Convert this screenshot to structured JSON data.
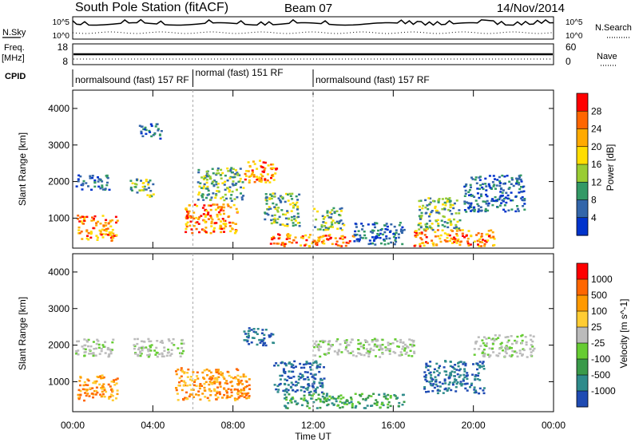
{
  "header": {
    "station": "South Pole Station (fitACF)",
    "beam": "Beam 07",
    "date": "14/Nov/2014"
  },
  "strips": {
    "nsky_label": "N.Sky",
    "nsky_ticks": [
      "10^5",
      "10^0"
    ],
    "nsearch_label": "N.Search",
    "nsearch_ticks": [
      "10^5",
      "10^0"
    ],
    "freq_label": "Freq.",
    "freq_unit": "[MHz]",
    "freq_ticks": [
      "18",
      "8"
    ],
    "nave_label": "Nave",
    "nave_ticks": [
      "60",
      "0"
    ],
    "cpid_label": "CPID"
  },
  "cpid_segments": [
    {
      "label": "normalsound (fast) 157 RF",
      "start_hour": 0
    },
    {
      "label": "normal (fast) 151 RF",
      "start_hour": 6
    },
    {
      "label": "normalsound (fast) 157 RF",
      "start_hour": 12
    }
  ],
  "power_panel": {
    "ylabel": "Slant Range [km]",
    "colorbar_label": "Power [dB]",
    "colorbar_ticks": [
      "28",
      "24",
      "20",
      "16",
      "12",
      "8",
      "4"
    ],
    "colors": [
      "#ff0000",
      "#ff6600",
      "#ffaa00",
      "#ffdd00",
      "#99cc33",
      "#339966",
      "#3366aa",
      "#0033cc"
    ]
  },
  "velocity_panel": {
    "ylabel": "Slant Range [km]",
    "colorbar_label": "Velocity [m s^-1]",
    "colorbar_ticks": [
      "1000",
      "500",
      "100",
      "25",
      "-25",
      "-100",
      "-500",
      "-1000"
    ],
    "colors": [
      "#1f4bb3",
      "#2e8b8b",
      "#3a9a4a",
      "#66cc33",
      "#bbbbbb",
      "#ffcc33",
      "#ff9900",
      "#ff6600",
      "#ff0000"
    ]
  },
  "xaxis": {
    "label": "Time UT",
    "ticks": [
      "00:00",
      "04:00",
      "08:00",
      "12:00",
      "16:00",
      "20:00",
      "00:00"
    ]
  },
  "chart_data": {
    "type": "heatmap",
    "title": "South Pole Station (fitACF)",
    "x_range_hours": [
      0,
      24
    ],
    "y_range_km": [
      180,
      4500
    ],
    "yticks": [
      1000,
      2000,
      3000,
      4000
    ],
    "panels": [
      {
        "name": "Power",
        "unit": "dB",
        "scale": [
          0,
          30
        ],
        "blobs": [
          {
            "t0": 0.1,
            "t1": 1.8,
            "r0": 1800,
            "r1": 2200,
            "level": "low"
          },
          {
            "t0": 0.2,
            "t1": 2.2,
            "r0": 400,
            "r1": 1100,
            "level": "high"
          },
          {
            "t0": 2.8,
            "t1": 4.0,
            "r0": 1600,
            "r1": 2100,
            "level": "mid"
          },
          {
            "t0": 3.3,
            "t1": 4.4,
            "r0": 3200,
            "r1": 3600,
            "level": "low"
          },
          {
            "t0": 5.5,
            "t1": 8.2,
            "r0": 600,
            "r1": 1400,
            "level": "high"
          },
          {
            "t0": 6.2,
            "t1": 8.5,
            "r0": 1500,
            "r1": 2400,
            "level": "mid"
          },
          {
            "t0": 8.5,
            "t1": 10.2,
            "r0": 2000,
            "r1": 2600,
            "level": "high"
          },
          {
            "t0": 9.5,
            "t1": 11.3,
            "r0": 800,
            "r1": 1700,
            "level": "mid"
          },
          {
            "t0": 9.8,
            "t1": 14.0,
            "r0": 250,
            "r1": 600,
            "level": "high"
          },
          {
            "t0": 12.0,
            "t1": 13.5,
            "r0": 700,
            "r1": 1300,
            "level": "mid"
          },
          {
            "t0": 14.0,
            "t1": 16.5,
            "r0": 300,
            "r1": 900,
            "level": "low"
          },
          {
            "t0": 17.2,
            "t1": 19.3,
            "r0": 700,
            "r1": 1600,
            "level": "mid"
          },
          {
            "t0": 17.0,
            "t1": 21.0,
            "r0": 250,
            "r1": 700,
            "level": "high"
          },
          {
            "t0": 19.5,
            "t1": 22.5,
            "r0": 1200,
            "r1": 2200,
            "level": "low"
          }
        ]
      },
      {
        "name": "Velocity",
        "unit": "m s^-1",
        "scale": [
          -1000,
          1000
        ],
        "blobs": [
          {
            "t0": 0.1,
            "t1": 2.0,
            "r0": 1700,
            "r1": 2200,
            "level": "grey"
          },
          {
            "t0": 0.2,
            "t1": 2.2,
            "r0": 500,
            "r1": 1200,
            "level": "orange"
          },
          {
            "t0": 3.0,
            "t1": 5.5,
            "r0": 1700,
            "r1": 2200,
            "level": "grey"
          },
          {
            "t0": 5.0,
            "t1": 8.8,
            "r0": 500,
            "r1": 1400,
            "level": "orange"
          },
          {
            "t0": 8.5,
            "t1": 10.0,
            "r0": 2000,
            "r1": 2500,
            "level": "blue"
          },
          {
            "t0": 10.0,
            "t1": 12.5,
            "r0": 700,
            "r1": 1600,
            "level": "blue"
          },
          {
            "t0": 10.5,
            "t1": 16.5,
            "r0": 300,
            "r1": 700,
            "level": "green"
          },
          {
            "t0": 12.0,
            "t1": 17.0,
            "r0": 1700,
            "r1": 2200,
            "level": "grey"
          },
          {
            "t0": 17.5,
            "t1": 20.5,
            "r0": 700,
            "r1": 1600,
            "level": "blue"
          },
          {
            "t0": 20.0,
            "t1": 23.0,
            "r0": 1700,
            "r1": 2300,
            "level": "grey"
          }
        ]
      }
    ]
  }
}
